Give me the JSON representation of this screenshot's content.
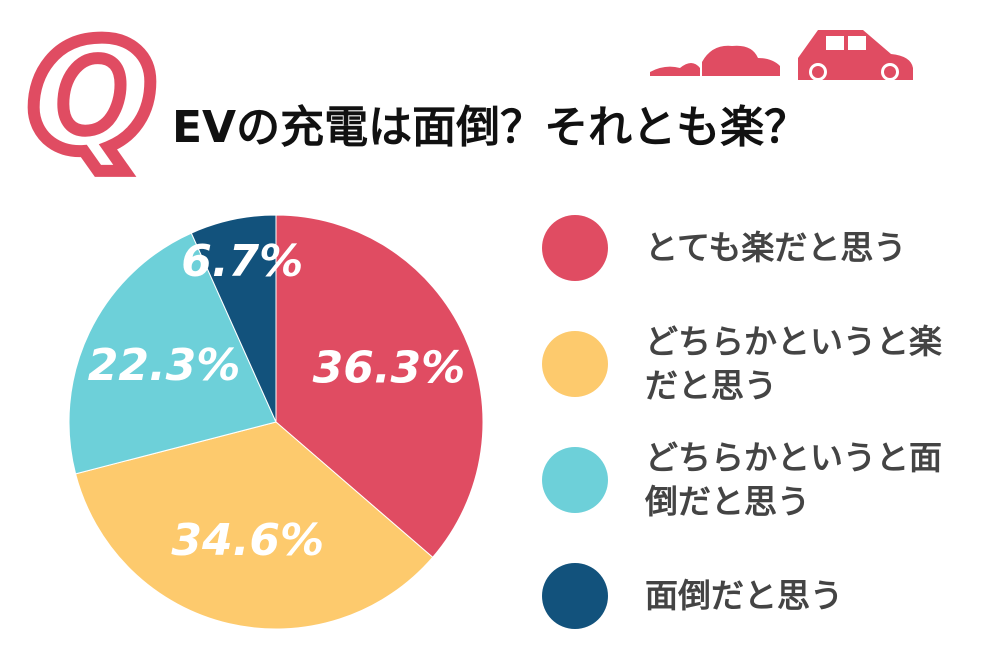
{
  "chart_data": {
    "type": "pie",
    "title_mark": "Q",
    "title": "EVの充電は面倒？それとも楽？",
    "categories": [
      "とても楽だと思う",
      "どちらかというと楽だと思う",
      "どちらかというと面倒だと思う",
      "面倒だと思う"
    ],
    "values": [
      36.3,
      34.6,
      22.3,
      6.7
    ],
    "value_labels": [
      "36.3%",
      "34.6%",
      "22.3%",
      "6.7%"
    ],
    "colors": [
      "#e04c62",
      "#fdca6d",
      "#6dd0d9",
      "#12527c"
    ],
    "legend": "right"
  }
}
